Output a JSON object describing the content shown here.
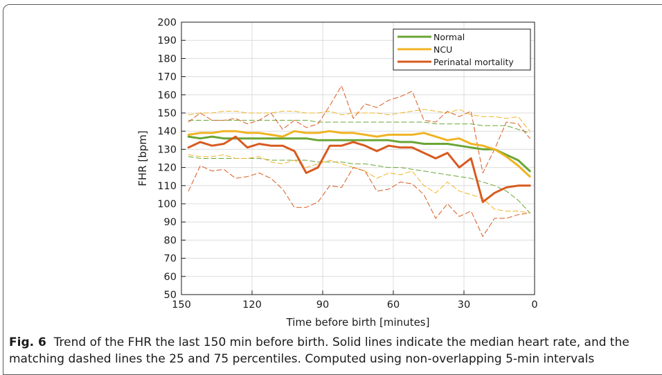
{
  "caption": {
    "label": "Fig. 6",
    "text": "Trend of the FHR the last 150 min before birth. Solid lines indicate the median heart rate, and the matching dashed lines the 25 and 75 percentiles. Computed using non-overlapping 5-min intervals"
  },
  "chart_data": {
    "type": "line",
    "title": "",
    "xlabel": "Time before birth [minutes]",
    "ylabel": "FHR [bpm]",
    "xlim": [
      150,
      0
    ],
    "ylim": [
      50,
      200
    ],
    "xticks": [
      "150",
      "120",
      "90",
      "60",
      "30",
      "0"
    ],
    "yticks": [
      "50",
      "60",
      "70",
      "80",
      "90",
      "100",
      "110",
      "120",
      "130",
      "140",
      "150",
      "160",
      "170",
      "180",
      "190",
      "200"
    ],
    "grid": true,
    "legend_position": "top-right",
    "x": [
      147,
      142,
      137,
      132,
      127,
      122,
      117,
      112,
      107,
      102,
      97,
      92,
      87,
      82,
      77,
      72,
      67,
      62,
      57,
      52,
      47,
      42,
      37,
      32,
      27,
      22,
      17,
      12,
      7,
      2
    ],
    "series": [
      {
        "name": "Normal",
        "color": "#6aa535",
        "style": "solid",
        "values": [
          137,
          136,
          137,
          136,
          136,
          136,
          136,
          136,
          136,
          136,
          136,
          135,
          135,
          135,
          135,
          135,
          135,
          135,
          134,
          134,
          133,
          133,
          133,
          132,
          131,
          130,
          130,
          127,
          124,
          118
        ]
      },
      {
        "name": "NCU",
        "color": "#f0b323",
        "style": "solid",
        "values": [
          138,
          139,
          139,
          140,
          140,
          139,
          139,
          138,
          137,
          140,
          139,
          139,
          140,
          139,
          139,
          138,
          137,
          138,
          138,
          138,
          139,
          137,
          135,
          136,
          133,
          132,
          130,
          126,
          121,
          115
        ]
      },
      {
        "name": "Perinatal mortality",
        "color": "#d85a1f",
        "style": "solid",
        "values": [
          131,
          134,
          132,
          133,
          137,
          131,
          133,
          132,
          132,
          129,
          117,
          120,
          132,
          132,
          134,
          132,
          129,
          132,
          131,
          131,
          128,
          125,
          128,
          120,
          125,
          101,
          106,
          109,
          110,
          110
        ]
      },
      {
        "color": "#6aa535",
        "style": "dashed",
        "values": [
          146,
          146,
          146,
          146,
          146,
          146,
          146,
          146,
          146,
          146,
          146,
          145,
          145,
          145,
          145,
          145,
          145,
          145,
          145,
          145,
          145,
          144,
          144,
          144,
          144,
          143,
          143,
          143,
          141,
          139
        ]
      },
      {
        "color": "#6aa535",
        "style": "dashed",
        "values": [
          126,
          125,
          125,
          125,
          125,
          125,
          125,
          124,
          124,
          124,
          124,
          123,
          123,
          123,
          122,
          122,
          121,
          120,
          120,
          119,
          118,
          117,
          116,
          115,
          114,
          112,
          110,
          107,
          102,
          95
        ]
      },
      {
        "color": "#f0b323",
        "style": "dashed",
        "values": [
          149,
          150,
          150,
          151,
          151,
          150,
          150,
          150,
          151,
          151,
          150,
          150,
          151,
          149,
          150,
          150,
          150,
          149,
          150,
          151,
          152,
          151,
          150,
          152,
          149,
          148,
          148,
          147,
          148,
          140
        ]
      },
      {
        "color": "#f0b323",
        "style": "dashed",
        "values": [
          127,
          126,
          126,
          127,
          125,
          125,
          126,
          123,
          122,
          124,
          120,
          122,
          124,
          122,
          120,
          118,
          114,
          117,
          116,
          118,
          110,
          106,
          112,
          107,
          105,
          103,
          97,
          96,
          96,
          95
        ]
      },
      {
        "color": "#d85a1f",
        "style": "dashed",
        "values": [
          145,
          150,
          146,
          146,
          147,
          144,
          146,
          150,
          141,
          146,
          142,
          144,
          154,
          165,
          147,
          155,
          153,
          157,
          159,
          162,
          146,
          145,
          151,
          148,
          151,
          117,
          130,
          145,
          144,
          136
        ]
      },
      {
        "color": "#d85a1f",
        "style": "dashed",
        "values": [
          107,
          121,
          118,
          119,
          114,
          115,
          117,
          114,
          108,
          98,
          98,
          101,
          110,
          109,
          120,
          118,
          107,
          108,
          112,
          111,
          105,
          92,
          100,
          93,
          96,
          82,
          92,
          92,
          94,
          95
        ]
      }
    ]
  }
}
